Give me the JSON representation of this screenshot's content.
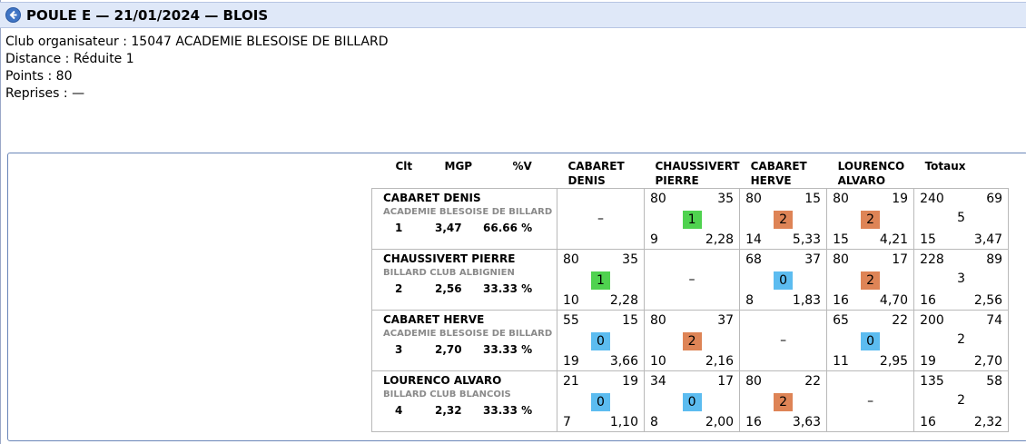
{
  "header": {
    "title": "POULE E — 21/01/2024 — BLOIS",
    "back_icon": "arrow-left-circle-icon",
    "accent_color": "#3f74c4"
  },
  "info": {
    "organizer": "Club organisateur : 15047 ACADEMIE BLESOISE DE BILLARD",
    "distance": "Distance : Réduite 1",
    "points": "Points : 80",
    "reprises": "Reprises : —"
  },
  "table": {
    "headers": {
      "clt": "Clt",
      "mgp": "MGP",
      "pv": "%V",
      "col1_a": "CABARET",
      "col1_b": "DENIS",
      "col2_a": "CHAUSSIVERT",
      "col2_b": "PIERRE",
      "col3_a": "CABARET",
      "col3_b": "HERVE",
      "col4_a": "LOURENCO",
      "col4_b": "ALVARO",
      "totals": "Totaux"
    },
    "dash": "–",
    "rows": [
      {
        "name": "CABARET DENIS",
        "club": "ACADEMIE BLESOISE DE BILLARD",
        "clt": "1",
        "mgp": "3,47",
        "pv": "66.66 %",
        "c2": {
          "tl": "80",
          "tr": "35",
          "mid": "1",
          "bl": "9",
          "br": "2,28"
        },
        "c3": {
          "tl": "80",
          "tr": "15",
          "mid": "2",
          "bl": "14",
          "br": "5,33"
        },
        "c4": {
          "tl": "80",
          "tr": "19",
          "mid": "2",
          "bl": "15",
          "br": "4,21"
        },
        "tot": {
          "tl": "240",
          "tr": "69",
          "mid": "5",
          "bl": "15",
          "br": "3,47"
        }
      },
      {
        "name": "CHAUSSIVERT PIERRE",
        "club": "BILLARD CLUB ALBIGNIEN",
        "clt": "2",
        "mgp": "2,56",
        "pv": "33.33 %",
        "c1": {
          "tl": "80",
          "tr": "35",
          "mid": "1",
          "bl": "10",
          "br": "2,28"
        },
        "c3": {
          "tl": "68",
          "tr": "37",
          "mid": "0",
          "bl": "8",
          "br": "1,83"
        },
        "c4": {
          "tl": "80",
          "tr": "17",
          "mid": "2",
          "bl": "16",
          "br": "4,70"
        },
        "tot": {
          "tl": "228",
          "tr": "89",
          "mid": "3",
          "bl": "16",
          "br": "2,56"
        }
      },
      {
        "name": "CABARET HERVE",
        "club": "ACADEMIE BLESOISE DE BILLARD",
        "clt": "3",
        "mgp": "2,70",
        "pv": "33.33 %",
        "c1": {
          "tl": "55",
          "tr": "15",
          "mid": "0",
          "bl": "19",
          "br": "3,66"
        },
        "c2": {
          "tl": "80",
          "tr": "37",
          "mid": "2",
          "bl": "10",
          "br": "2,16"
        },
        "c4": {
          "tl": "65",
          "tr": "22",
          "mid": "0",
          "bl": "11",
          "br": "2,95"
        },
        "tot": {
          "tl": "200",
          "tr": "74",
          "mid": "2",
          "bl": "19",
          "br": "2,70"
        }
      },
      {
        "name": "LOURENCO ALVARO",
        "club": "BILLARD CLUB BLANCOIS",
        "clt": "4",
        "mgp": "2,32",
        "pv": "33.33 %",
        "c1": {
          "tl": "21",
          "tr": "19",
          "mid": "0",
          "bl": "7",
          "br": "1,10"
        },
        "c2": {
          "tl": "34",
          "tr": "17",
          "mid": "0",
          "bl": "8",
          "br": "2,00"
        },
        "c3": {
          "tl": "80",
          "tr": "22",
          "mid": "2",
          "bl": "16",
          "br": "3,63"
        },
        "tot": {
          "tl": "135",
          "tr": "58",
          "mid": "2",
          "bl": "16",
          "br": "2,32"
        }
      }
    ],
    "badge_colors": {
      "1": "#4fd24f",
      "0": "#5cbcf0",
      "2": "#de8456"
    }
  }
}
